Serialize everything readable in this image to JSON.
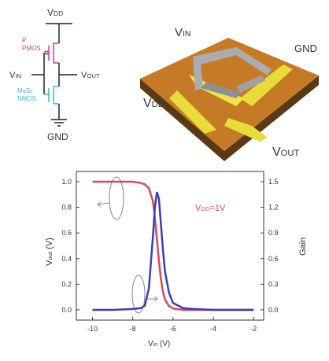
{
  "circuit": {
    "vdd": [
      "V",
      "DD"
    ],
    "pmos": [
      "P",
      "PMOS"
    ],
    "vin": [
      "V",
      "IN"
    ],
    "vout": [
      "V",
      "OUT"
    ],
    "nmos": [
      "MoS",
      "2",
      "NMOS"
    ],
    "gnd": "GND"
  },
  "device": {
    "vin": [
      "V",
      "IN"
    ],
    "gnd": "GND",
    "vdd": [
      "V",
      "DD"
    ],
    "vout": [
      "V",
      "OUT"
    ]
  },
  "chart_data": {
    "type": "line",
    "xlabel": [
      "V",
      "in",
      " (V)"
    ],
    "ylabel": [
      "V",
      "out",
      " (V)"
    ],
    "y2label": "Gain",
    "annotation": [
      "V",
      "DD",
      "=1V"
    ],
    "x": [
      -10,
      -9,
      -8,
      -7.6,
      -7.4,
      -7.2,
      -7.0,
      -6.9,
      -6.8,
      -6.7,
      -6.6,
      -6.5,
      -6.4,
      -6.2,
      -6.0,
      -5.5,
      -5,
      -4,
      -3,
      -2
    ],
    "series": [
      {
        "color": "#d9475a",
        "values": [
          1.0,
          1.0,
          1.0,
          0.99,
          0.98,
          0.95,
          0.85,
          0.72,
          0.55,
          0.38,
          0.24,
          0.14,
          0.08,
          0.03,
          0.01,
          0.0,
          0.0,
          0.0,
          0.0,
          0.0
        ]
      },
      {
        "color": "#3a3fb5",
        "axis": "y2",
        "values": [
          0,
          0,
          0.01,
          0.02,
          0.05,
          0.25,
          0.85,
          1.2,
          1.38,
          1.3,
          1.0,
          0.7,
          0.45,
          0.2,
          0.08,
          0.02,
          0.01,
          0,
          0,
          0
        ]
      }
    ],
    "xlim": [
      -10.8,
      -1.5
    ],
    "xticks": [
      -10,
      -8,
      -6,
      -4,
      -2
    ],
    "ylim": [
      -0.08,
      1.08
    ],
    "yticks": [
      {
        "value": 0,
        "label": "0.0"
      },
      0.2,
      0.4,
      0.6,
      0.8,
      {
        "value": 1,
        "label": "1.0"
      }
    ],
    "y2lim": [
      -0.12,
      1.62
    ],
    "y2ticks": [
      {
        "value": 0,
        "label": "0.0"
      },
      0.3,
      0.6,
      0.9,
      1.2,
      1.5
    ]
  }
}
